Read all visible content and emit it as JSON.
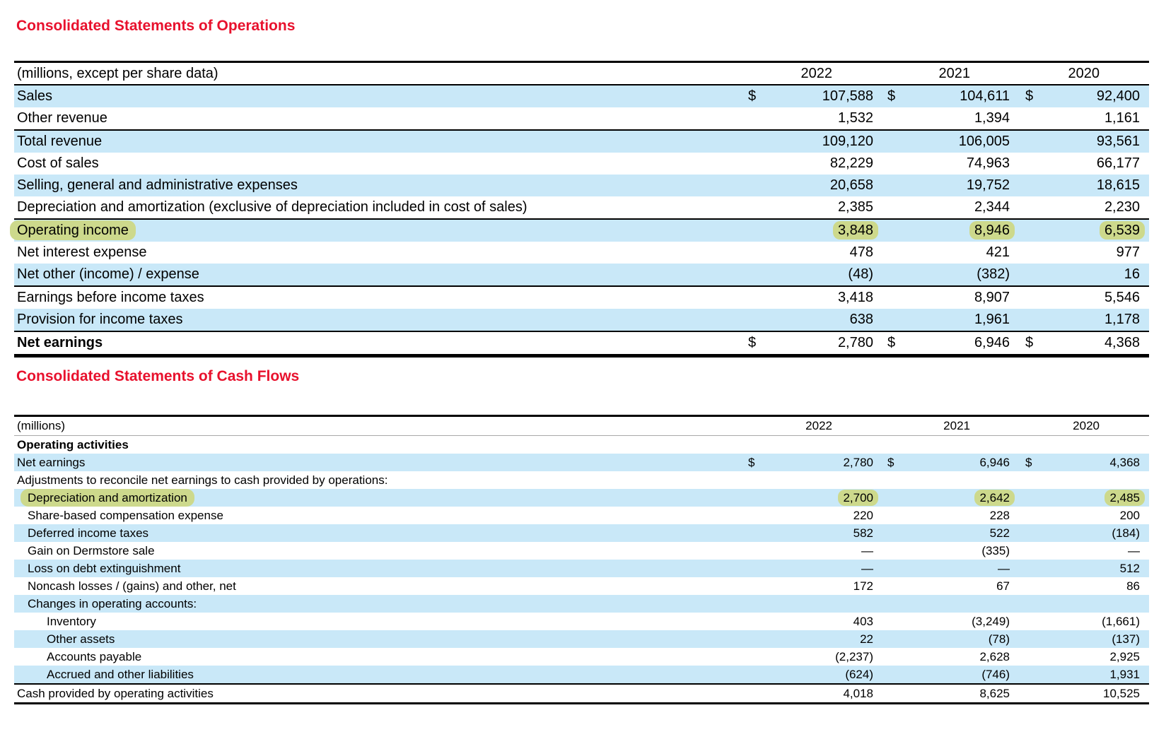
{
  "colors": {
    "title_red": "#e8112d",
    "row_blue": "#c9e8f8",
    "highlight_green": "#cdd98c"
  },
  "operations": {
    "title": "Consolidated Statements of Operations",
    "unit_label": "(millions, except per share data)",
    "years": [
      "2022",
      "2021",
      "2020"
    ],
    "rows": [
      {
        "label": "Sales",
        "dollars": true,
        "shaded": true,
        "values": [
          "107,588",
          "104,611",
          "92,400"
        ]
      },
      {
        "label": "Other revenue",
        "values": [
          "1,532",
          "1,394",
          "1,161"
        ]
      },
      {
        "label": "Total revenue",
        "shaded": true,
        "rule": true,
        "values": [
          "109,120",
          "106,005",
          "93,561"
        ]
      },
      {
        "label": "Cost of sales",
        "values": [
          "82,229",
          "74,963",
          "66,177"
        ]
      },
      {
        "label": "Selling, general and administrative expenses",
        "shaded": true,
        "values": [
          "20,658",
          "19,752",
          "18,615"
        ]
      },
      {
        "label": "Depreciation and amortization (exclusive of depreciation included in cost of sales)",
        "values": [
          "2,385",
          "2,344",
          "2,230"
        ]
      },
      {
        "label": "Operating income",
        "shaded": true,
        "rule": true,
        "highlight": true,
        "values": [
          "3,848",
          "8,946",
          "6,539"
        ]
      },
      {
        "label": "Net interest expense",
        "values": [
          "478",
          "421",
          "977"
        ]
      },
      {
        "label": "Net other (income) / expense",
        "shaded": true,
        "values": [
          "(48)",
          "(382)",
          "16"
        ]
      },
      {
        "label": "Earnings before income taxes",
        "rule": true,
        "values": [
          "3,418",
          "8,907",
          "5,546"
        ]
      },
      {
        "label": "Provision for income taxes",
        "shaded": true,
        "values": [
          "638",
          "1,961",
          "1,178"
        ]
      },
      {
        "label": "Net earnings",
        "bold": true,
        "rule": true,
        "dollars": true,
        "values": [
          "2,780",
          "6,946",
          "4,368"
        ]
      }
    ]
  },
  "cash_flows": {
    "title": "Consolidated Statements of Cash Flows",
    "unit_label": "(millions)",
    "years": [
      "2022",
      "2021",
      "2020"
    ],
    "rows": [
      {
        "label": "Operating activities",
        "bold": true,
        "values": [
          "",
          "",
          ""
        ]
      },
      {
        "label": "Net earnings",
        "shaded": true,
        "dollars": true,
        "values": [
          "2,780",
          "6,946",
          "4,368"
        ]
      },
      {
        "label": "Adjustments to reconcile net earnings to cash provided by operations:",
        "values": [
          "",
          "",
          ""
        ]
      },
      {
        "label": "Depreciation and amortization",
        "indent": 1,
        "shaded": true,
        "highlight": true,
        "values": [
          "2,700",
          "2,642",
          "2,485"
        ]
      },
      {
        "label": "Share-based compensation expense",
        "indent": 1,
        "values": [
          "220",
          "228",
          "200"
        ]
      },
      {
        "label": "Deferred income taxes",
        "indent": 1,
        "shaded": true,
        "values": [
          "582",
          "522",
          "(184)"
        ]
      },
      {
        "label": "Gain on Dermstore sale",
        "indent": 1,
        "values": [
          "—",
          "(335)",
          "—"
        ]
      },
      {
        "label": "Loss on debt extinguishment",
        "indent": 1,
        "shaded": true,
        "values": [
          "—",
          "—",
          "512"
        ]
      },
      {
        "label": "Noncash losses / (gains) and other, net",
        "indent": 1,
        "values": [
          "172",
          "67",
          "86"
        ]
      },
      {
        "label": "Changes in operating accounts:",
        "indent": 1,
        "shaded": true,
        "values": [
          "",
          "",
          ""
        ]
      },
      {
        "label": "Inventory",
        "indent": 2,
        "values": [
          "403",
          "(3,249)",
          "(1,661)"
        ]
      },
      {
        "label": "Other assets",
        "indent": 2,
        "shaded": true,
        "values": [
          "22",
          "(78)",
          "(137)"
        ]
      },
      {
        "label": "Accounts payable",
        "indent": 2,
        "values": [
          "(2,237)",
          "2,628",
          "2,925"
        ]
      },
      {
        "label": "Accrued and other liabilities",
        "indent": 2,
        "shaded": true,
        "values": [
          "(624)",
          "(746)",
          "1,931"
        ]
      },
      {
        "label": "Cash provided by operating activities",
        "rule": true,
        "values": [
          "4,018",
          "8,625",
          "10,525"
        ]
      }
    ]
  }
}
